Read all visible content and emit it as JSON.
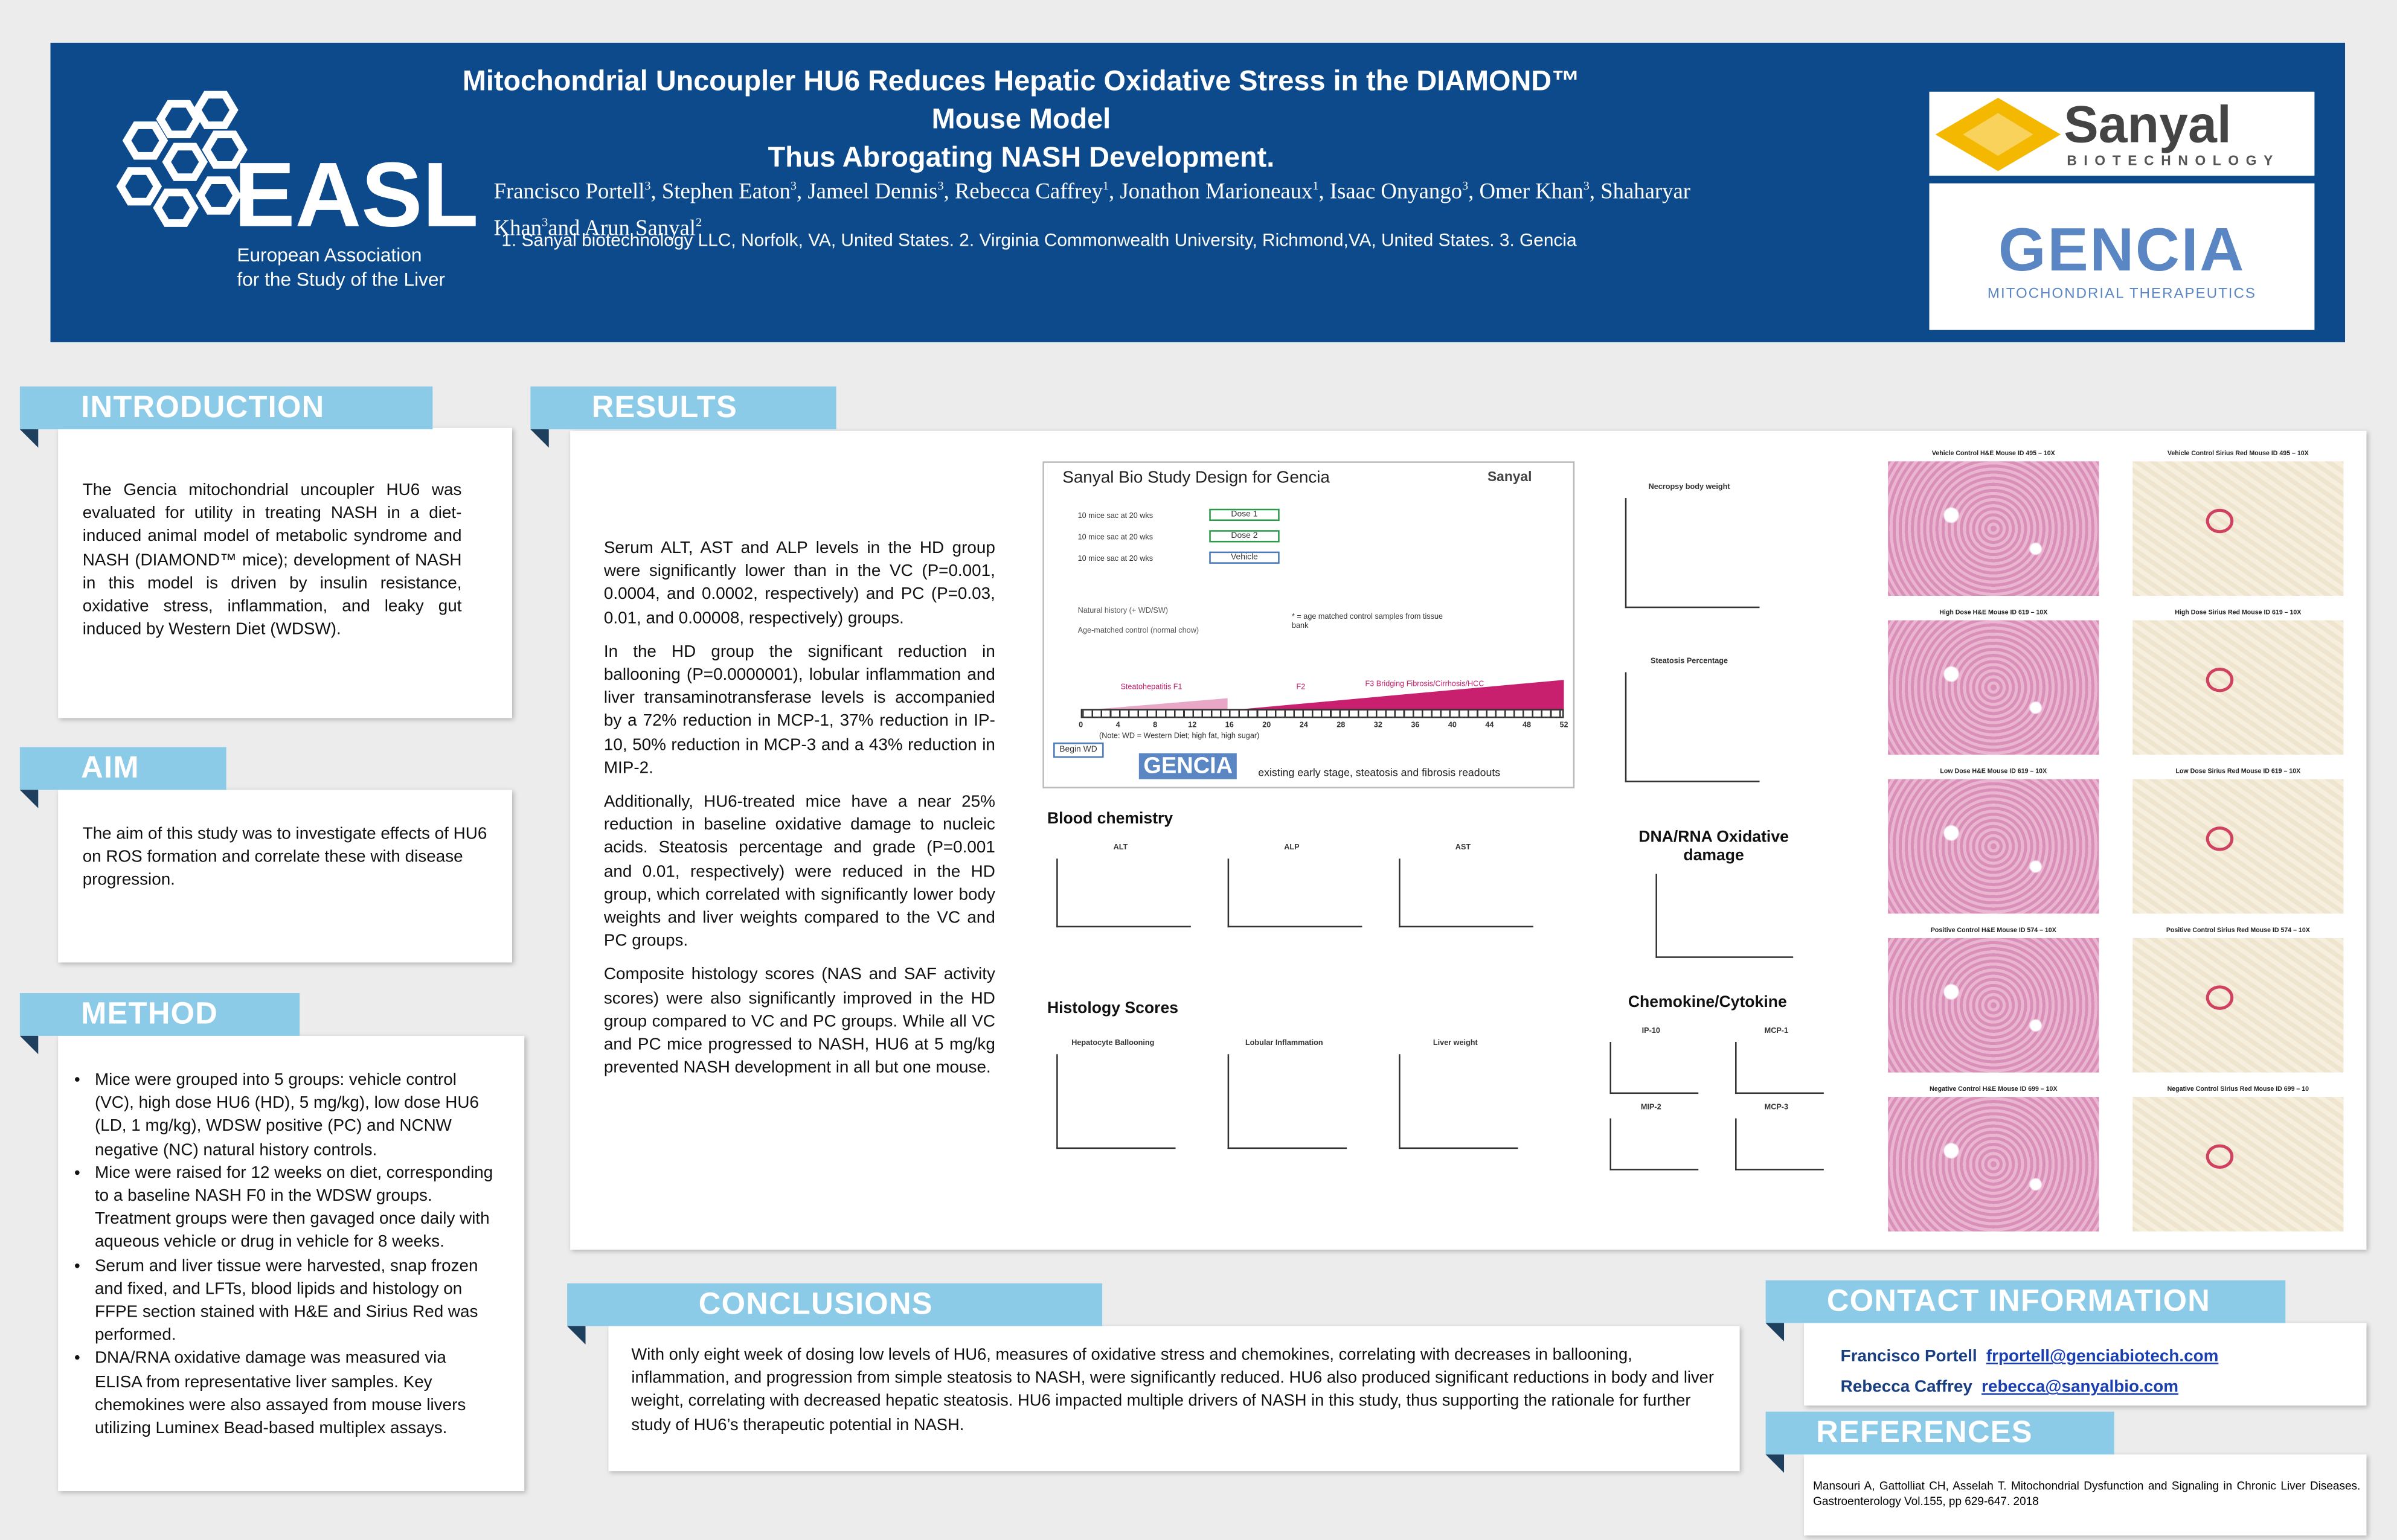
{
  "header": {
    "title_line1": "Mitochondrial Uncoupler HU6 Reduces Hepatic Oxidative Stress in the DIAMOND™ Mouse Model",
    "title_line2": "Thus Abrogating NASH Development.",
    "authors": [
      {
        "name": "Francisco Portell",
        "affil": "3",
        "sep": ","
      },
      {
        "name": "Stephen Eaton",
        "affil": "3",
        "sep": ","
      },
      {
        "name": "Jameel Dennis",
        "affil": "3",
        "sep": ","
      },
      {
        "name": "Rebecca Caffrey",
        "affil": "1",
        "sep": ","
      },
      {
        "name": "Jonathon Marioneaux",
        "affil": "1",
        "sep": ","
      },
      {
        "name": "Isaac Onyango",
        "affil": "3",
        "sep": ","
      },
      {
        "name": "Omer Khan",
        "affil": "3",
        "sep": ","
      },
      {
        "name": "Shaharyar Khan",
        "affil": "3",
        "sep": "and"
      },
      {
        "name": "Arun Sanyal",
        "affil": "2",
        "sep": ""
      }
    ],
    "affiliations": "1. Sanyal biotechnology LLC, Norfolk, VA, United States. 2. Virginia Commonwealth University, Richmond,VA, United States. 3. Gencia",
    "easl": "EASL",
    "easl_sub1": "European Association",
    "easl_sub2": "for the Study of the Liver",
    "sanyal": "Sanyal",
    "sanyal_sub": "BIOTECHNOLOGY",
    "gencia": "GENCIA",
    "gencia_sub": "MITOCHONDRIAL THERAPEUTICS"
  },
  "introduction": {
    "heading": "INTRODUCTION",
    "text": "The Gencia mitochondrial uncoupler HU6 was evaluated for utility in treating NASH in a diet-induced animal model of metabolic syndrome and NASH (DIAMOND™ mice); development of NASH in this model is driven by insulin resistance, oxidative stress, inflammation, and leaky gut induced by Western Diet (WDSW)."
  },
  "aim": {
    "heading": "AIM",
    "text": "The aim of this study was to investigate effects of HU6 on ROS formation and correlate these with disease progression."
  },
  "method": {
    "heading": "METHOD",
    "bullets": [
      "Mice were grouped into 5 groups: vehicle control (VC), high dose HU6 (HD), 5 mg/kg), low dose HU6 (LD, 1 mg/kg), WDSW positive (PC) and NCNW negative (NC) natural history controls.",
      "Mice were raised for 12 weeks on diet, corresponding to a baseline NASH F0 in the WDSW groups. Treatment groups were then gavaged once daily with aqueous vehicle or drug in vehicle for 8 weeks.",
      "Serum and liver tissue were harvested, snap frozen and fixed, and LFTs, blood lipids and histology on FFPE section stained with H&E and Sirius Red was performed.",
      "DNA/RNA oxidative damage was measured via ELISA from representative liver samples.  Key chemokines were also assayed from mouse livers utilizing Luminex Bead-based multiplex assays."
    ]
  },
  "results": {
    "heading": "RESULTS",
    "paragraphs": [
      "Serum ALT, AST and ALP levels in the HD group were significantly lower than in the VC (P=0.001, 0.0004, and 0.0002, respectively) and PC (P=0.03, 0.01, and 0.00008, respectively) groups.",
      "In the HD group the significant reduction in ballooning (P=0.0000001), lobular inflammation and liver transaminotransferase levels is accompanied by a 72% reduction in MCP-1, 37% reduction in IP-10, 50% reduction in MCP-3 and a 43% reduction in MIP-2.",
      "Additionally, HU6-treated mice have a near 25% reduction in baseline oxidative damage to nucleic acids. Steatosis percentage and grade (P=0.001 and 0.01, respectively) were reduced in the HD group, which correlated with significantly lower body weights and liver weights compared to the VC and PC groups.",
      "Composite histology scores (NAS and SAF activity scores) were also significantly improved in the HD group compared to VC and PC groups.  While all VC and PC mice progressed to NASH, HU6 at 5 mg/kg prevented NASH development in all but one mouse."
    ],
    "study_design": {
      "title": "Sanyal Bio Study Design for Gencia",
      "rows": [
        "10 mice sac at 20 wks",
        "10 mice sac at 20 wks",
        "10 mice sac at 20 wks"
      ],
      "doses": [
        "Dose 1",
        "Dose 2",
        "Vehicle"
      ],
      "note1": "Natural history (+ WD/SW)",
      "note2": "Age-matched control (normal chow)",
      "star": "* = age matched control samples from tissue bank",
      "stage1": "Steatohepatitis F1",
      "stage2": "F2",
      "stage3": "F3 Bridging Fibrosis/Cirrhosis/HCC",
      "begin": "Begin WD",
      "diet_note": "(Note: WD = Western Diet; high fat, high sugar)",
      "footer": "existing early stage, steatosis and fibrosis readouts",
      "weeks": [
        "0",
        "4",
        "8",
        "12",
        "16",
        "20",
        "24",
        "28",
        "32",
        "36",
        "40",
        "44",
        "48",
        "52"
      ]
    },
    "blood_chemistry": "Blood chemistry",
    "blood_panels": [
      "ALT",
      "ALP",
      "AST"
    ],
    "histology": "Histology Scores",
    "histology_panels": [
      "Hepatocyte Ballooning",
      "Lobular Inflammation",
      "Liver weight"
    ],
    "side_panels": [
      "Necropsy body weight",
      "Steatosis Percentage"
    ],
    "oxidative": "DNA/RNA Oxidative damage",
    "chemokine": "Chemokine/Cytokine",
    "chemokine_panels": [
      "IP-10",
      "MCP-1",
      "MIP-2",
      "MCP-3"
    ],
    "micrographs": [
      [
        "Vehicle Control H&E Mouse ID 495 – 10X",
        "Vehicle Control Sirius Red Mouse ID 495 – 10X"
      ],
      [
        "High Dose H&E Mouse ID 619 – 10X",
        "High Dose Sirius Red Mouse ID 619 – 10X"
      ],
      [
        "Low Dose H&E Mouse ID 619 – 10X",
        "Low Dose Sirius Red Mouse ID 619 – 10X"
      ],
      [
        "Positive Control H&E Mouse ID 574 – 10X",
        "Positive Control Sirius Red Mouse ID 574 – 10X"
      ],
      [
        "Negative Control H&E Mouse ID 699 – 10X",
        "Negative Control Sirius Red Mouse ID 699 – 10"
      ]
    ]
  },
  "conclusions": {
    "heading": "CONCLUSIONS",
    "text": "With only eight week of dosing low levels of HU6, measures of oxidative stress and chemokines, correlating with decreases in ballooning, inflammation, and progression from simple steatosis to NASH, were significantly reduced. HU6 also produced significant reductions in body and liver weight, correlating with decreased hepatic steatosis. HU6 impacted multiple drivers of NASH in this study, thus supporting the rationale for further study of HU6’s therapeutic potential in NASH."
  },
  "contact": {
    "heading": "CONTACT INFORMATION",
    "entries": [
      {
        "name": "Francisco Portell",
        "email": "frportell@genciabiotech.com"
      },
      {
        "name": "Rebecca Caffrey",
        "email": "rebecca@sanyalbio.com"
      }
    ]
  },
  "references": {
    "heading": "REFERENCES",
    "items": [
      "Mansouri A, Gattolliat CH, Asselah T. Mitochondrial Dysfunction and Signaling in Chronic Liver Diseases. Gastroenterology Vol.155, pp 629-647. 2018"
    ]
  }
}
